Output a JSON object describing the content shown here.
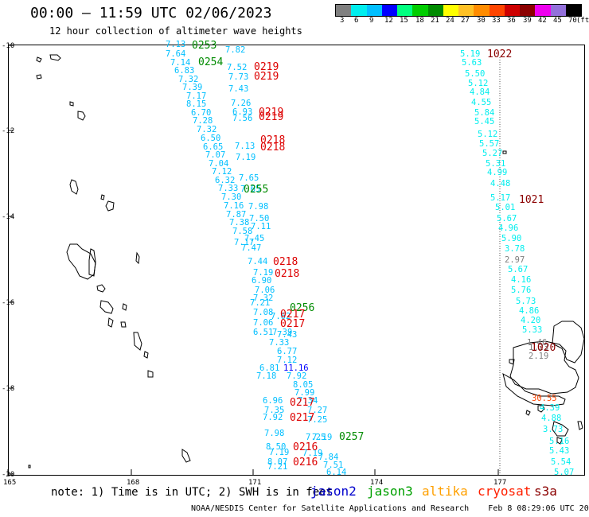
{
  "header": {
    "title": "00:00 – 11:59 UTC 02/06/2023",
    "subtitle": "12 hour collection of altimeter wave heights"
  },
  "legend": {
    "unit": "(ft)",
    "labels": [
      "3",
      "6",
      "9",
      "12",
      "15",
      "18",
      "21",
      "24",
      "27",
      "30",
      "33",
      "36",
      "39",
      "42",
      "45",
      "70"
    ],
    "colors": [
      "#7f7f7f",
      "#00eeee",
      "#00bfff",
      "#0000ff",
      "#00ff7f",
      "#00cd00",
      "#008b00",
      "#ffff00",
      "#ffc125",
      "#ff8c00",
      "#ff4500",
      "#cd0000",
      "#8b0000",
      "#ee00ee",
      "#9370db",
      "#000000"
    ]
  },
  "axes": {
    "lat_labels": [
      "-10",
      "-12",
      "-14",
      "-16",
      "-18",
      "-20"
    ],
    "lon_labels": [
      "165",
      "168",
      "171",
      "174",
      "177"
    ]
  },
  "tracks": [
    {
      "time": "0253",
      "color": "#008b00"
    },
    {
      "time": "0254",
      "color": "#008b00"
    },
    {
      "time": "0219",
      "color": "#dd0000"
    },
    {
      "time": "0219",
      "color": "#dd0000"
    },
    {
      "time": "0219",
      "color": "#dd0000"
    },
    {
      "time": "0219",
      "color": "#dd0000"
    },
    {
      "time": "0218",
      "color": "#dd0000"
    },
    {
      "time": "0218",
      "color": "#dd0000"
    },
    {
      "time": "0255",
      "color": "#008b00"
    },
    {
      "time": "0218",
      "color": "#dd0000"
    },
    {
      "time": "0218",
      "color": "#dd0000"
    },
    {
      "time": "0256",
      "color": "#008b00"
    },
    {
      "time": "0217",
      "color": "#dd0000"
    },
    {
      "time": "0217",
      "color": "#dd0000"
    },
    {
      "time": "0217",
      "color": "#dd0000"
    },
    {
      "time": "0217",
      "color": "#dd0000"
    },
    {
      "time": "0257",
      "color": "#008b00"
    },
    {
      "time": "0216",
      "color": "#dd0000"
    },
    {
      "time": "0216",
      "color": "#dd0000"
    },
    {
      "time": "1022",
      "color": "#8b0000"
    },
    {
      "time": "1021",
      "color": "#8b0000"
    },
    {
      "time": "1020",
      "color": "#8b0000"
    }
  ],
  "wave_heights": [
    {
      "v": "7.13",
      "c": "#00bfff"
    },
    {
      "v": "7.64",
      "c": "#00bfff"
    },
    {
      "v": "7.14",
      "c": "#00bfff"
    },
    {
      "v": "6.83",
      "c": "#00bfff"
    },
    {
      "v": "7.32",
      "c": "#00bfff"
    },
    {
      "v": "7.39",
      "c": "#00bfff"
    },
    {
      "v": "7.17",
      "c": "#00bfff"
    },
    {
      "v": "8.15",
      "c": "#00bfff"
    },
    {
      "v": "6.70",
      "c": "#00bfff"
    },
    {
      "v": "7.28",
      "c": "#00bfff"
    },
    {
      "v": "7.32",
      "c": "#00bfff"
    },
    {
      "v": "6.50",
      "c": "#00bfff"
    },
    {
      "v": "6.65",
      "c": "#00bfff"
    },
    {
      "v": "7.07",
      "c": "#00bfff"
    },
    {
      "v": "7.04",
      "c": "#00bfff"
    },
    {
      "v": "7.12",
      "c": "#00bfff"
    },
    {
      "v": "6.32",
      "c": "#00bfff"
    },
    {
      "v": "7.33",
      "c": "#00bfff"
    },
    {
      "v": "7.30",
      "c": "#00bfff"
    },
    {
      "v": "7.16",
      "c": "#00bfff"
    },
    {
      "v": "7.87",
      "c": "#00bfff"
    },
    {
      "v": "7.38",
      "c": "#00bfff"
    },
    {
      "v": "7.58",
      "c": "#00bfff"
    },
    {
      "v": "7.17",
      "c": "#00bfff"
    },
    {
      "v": "7.82",
      "c": "#00bfff"
    },
    {
      "v": "7.52",
      "c": "#00bfff"
    },
    {
      "v": "7.73",
      "c": "#00bfff"
    },
    {
      "v": "7.43",
      "c": "#00bfff"
    },
    {
      "v": "7.26",
      "c": "#00bfff"
    },
    {
      "v": "6.93",
      "c": "#00bfff"
    },
    {
      "v": "7.56",
      "c": "#00bfff"
    },
    {
      "v": "7.65",
      "c": "#00bfff"
    },
    {
      "v": "7.13",
      "c": "#00bfff"
    },
    {
      "v": "7.19",
      "c": "#00bfff"
    },
    {
      "v": "7.65",
      "c": "#00bfff"
    },
    {
      "v": "7.98",
      "c": "#00bfff"
    },
    {
      "v": "7.50",
      "c": "#00bfff"
    },
    {
      "v": "7.11",
      "c": "#00bfff"
    },
    {
      "v": "7.45",
      "c": "#00bfff"
    },
    {
      "v": "7.47",
      "c": "#00bfff"
    },
    {
      "v": "7.44",
      "c": "#00bfff"
    },
    {
      "v": "7.19",
      "c": "#00bfff"
    },
    {
      "v": "6.90",
      "c": "#00bfff"
    },
    {
      "v": "7.06",
      "c": "#00bfff"
    },
    {
      "v": "7.32",
      "c": "#00bfff"
    },
    {
      "v": "7.21",
      "c": "#00bfff"
    },
    {
      "v": "7.08",
      "c": "#00bfff"
    },
    {
      "v": "7.62",
      "c": "#00bfff"
    },
    {
      "v": "7.06",
      "c": "#00bfff"
    },
    {
      "v": "6.51",
      "c": "#00bfff"
    },
    {
      "v": "7.39",
      "c": "#00bfff"
    },
    {
      "v": "7.43",
      "c": "#00bfff"
    },
    {
      "v": "7.33",
      "c": "#00bfff"
    },
    {
      "v": "6.77",
      "c": "#00bfff"
    },
    {
      "v": "7.12",
      "c": "#00bfff"
    },
    {
      "v": "11.16",
      "c": "#0000ff"
    },
    {
      "v": "6.81",
      "c": "#00bfff"
    },
    {
      "v": "7.18",
      "c": "#00bfff"
    },
    {
      "v": "7.92",
      "c": "#00bfff"
    },
    {
      "v": "8.05",
      "c": "#00bfff"
    },
    {
      "v": "7.99",
      "c": "#00bfff"
    },
    {
      "v": "7.34",
      "c": "#00bfff"
    },
    {
      "v": "6.96",
      "c": "#00bfff"
    },
    {
      "v": "7.35",
      "c": "#00bfff"
    },
    {
      "v": "7.27",
      "c": "#00bfff"
    },
    {
      "v": "7.92",
      "c": "#00bfff"
    },
    {
      "v": "7.25",
      "c": "#00bfff"
    },
    {
      "v": "7.98",
      "c": "#00bfff"
    },
    {
      "v": "7.25",
      "c": "#00bfff"
    },
    {
      "v": "7.19",
      "c": "#00bfff"
    },
    {
      "v": "8.50",
      "c": "#00bfff"
    },
    {
      "v": "7.19",
      "c": "#00bfff"
    },
    {
      "v": "8.07",
      "c": "#00bfff"
    },
    {
      "v": "7.21",
      "c": "#00bfff"
    },
    {
      "v": "7.19",
      "c": "#00bfff"
    },
    {
      "v": "7.84",
      "c": "#00bfff"
    },
    {
      "v": "7.51",
      "c": "#00bfff"
    },
    {
      "v": "6.14",
      "c": "#00bfff"
    },
    {
      "v": "5.19",
      "c": "#00eeee"
    },
    {
      "v": "5.63",
      "c": "#00eeee"
    },
    {
      "v": "5.50",
      "c": "#00eeee"
    },
    {
      "v": "5.12",
      "c": "#00eeee"
    },
    {
      "v": "4.84",
      "c": "#00eeee"
    },
    {
      "v": "4.55",
      "c": "#00eeee"
    },
    {
      "v": "5.84",
      "c": "#00eeee"
    },
    {
      "v": "5.45",
      "c": "#00eeee"
    },
    {
      "v": "5.12",
      "c": "#00eeee"
    },
    {
      "v": "5.57",
      "c": "#00eeee"
    },
    {
      "v": "5.27",
      "c": "#00eeee"
    },
    {
      "v": "5.31",
      "c": "#00eeee"
    },
    {
      "v": "4.99",
      "c": "#00eeee"
    },
    {
      "v": "4.48",
      "c": "#00eeee"
    },
    {
      "v": "5.17",
      "c": "#00eeee"
    },
    {
      "v": "5.01",
      "c": "#00eeee"
    },
    {
      "v": "5.67",
      "c": "#00eeee"
    },
    {
      "v": "4.96",
      "c": "#00eeee"
    },
    {
      "v": "5.90",
      "c": "#00eeee"
    },
    {
      "v": "3.78",
      "c": "#00eeee"
    },
    {
      "v": "2.97",
      "c": "#7f7f7f"
    },
    {
      "v": "5.67",
      "c": "#00eeee"
    },
    {
      "v": "4.16",
      "c": "#00eeee"
    },
    {
      "v": "5.76",
      "c": "#00eeee"
    },
    {
      "v": "5.73",
      "c": "#00eeee"
    },
    {
      "v": "4.86",
      "c": "#00eeee"
    },
    {
      "v": "4.20",
      "c": "#00eeee"
    },
    {
      "v": "5.33",
      "c": "#00eeee"
    },
    {
      "v": "1.46",
      "c": "#7f7f7f"
    },
    {
      "v": "1.23",
      "c": "#7f7f7f"
    },
    {
      "v": "2.19",
      "c": "#7f7f7f"
    },
    {
      "v": "30.55",
      "c": "#ff4500"
    },
    {
      "v": "4.39",
      "c": "#00eeee"
    },
    {
      "v": "4.88",
      "c": "#00eeee"
    },
    {
      "v": "3.73",
      "c": "#00eeee"
    },
    {
      "v": "5.16",
      "c": "#00eeee"
    },
    {
      "v": "5.43",
      "c": "#00eeee"
    },
    {
      "v": "5.54",
      "c": "#00eeee"
    },
    {
      "v": "5.07",
      "c": "#00eeee"
    }
  ],
  "footer": {
    "note": "note: 1) Time is in UTC; 2) SWH is in feet",
    "satellites": [
      {
        "name": "jason2",
        "color": "#0000cd"
      },
      {
        "name": "jason3",
        "color": "#00a000"
      },
      {
        "name": "altika",
        "color": "#ffa000"
      },
      {
        "name": "cryosat",
        "color": "#ff2000"
      },
      {
        "name": "s3a",
        "color": "#8b0000"
      }
    ],
    "credit": "NOAA/NESDIS Center for Satellite Applications and Research",
    "timestamp": "Feb  8 08:29:06 UTC 2023"
  }
}
